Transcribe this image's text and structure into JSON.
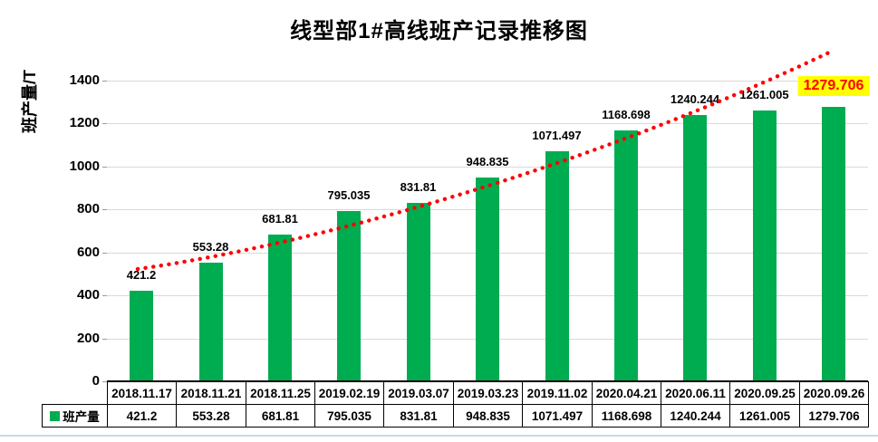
{
  "chart_data": {
    "type": "bar",
    "title": "线型部1#高线班产记录推移图",
    "ylabel": "班产量/T",
    "xlabel": "",
    "ylim": [
      0,
      1400
    ],
    "ytick_interval": 200,
    "yticks": [
      0,
      200,
      400,
      600,
      800,
      1000,
      1200,
      1400
    ],
    "grid": true,
    "gridline_color": "#d9d9d9",
    "categories": [
      "2018.11.17",
      "2018.11.21",
      "2018.11.25",
      "2019.02.19",
      "2019.03.07",
      "2019.03.23",
      "2019.11.02",
      "2020.04.21",
      "2020.06.11",
      "2020.09.25",
      "2020.09.26"
    ],
    "series": [
      {
        "name": "班产量",
        "color": "#00ac50",
        "values": [
          421.2,
          553.28,
          681.81,
          795.035,
          831.81,
          948.835,
          1071.497,
          1168.698,
          1240.244,
          1261.005,
          1279.706
        ]
      }
    ],
    "value_labels": [
      "421.2",
      "553.28",
      "681.81",
      "795.035",
      "831.81",
      "948.835",
      "1071.497",
      "1168.698",
      "1240.244",
      "1261.005",
      "1279.706"
    ],
    "highlighted_label": {
      "text": "1279.706",
      "text_color": "#ff0000",
      "background": "#ffff00"
    },
    "trendline": {
      "style": "dotted",
      "color": "#ff0000"
    },
    "legend": {
      "position": "data-table-left",
      "label": "班产量",
      "swatch_color": "#00ac50"
    },
    "data_table_shown": true
  }
}
